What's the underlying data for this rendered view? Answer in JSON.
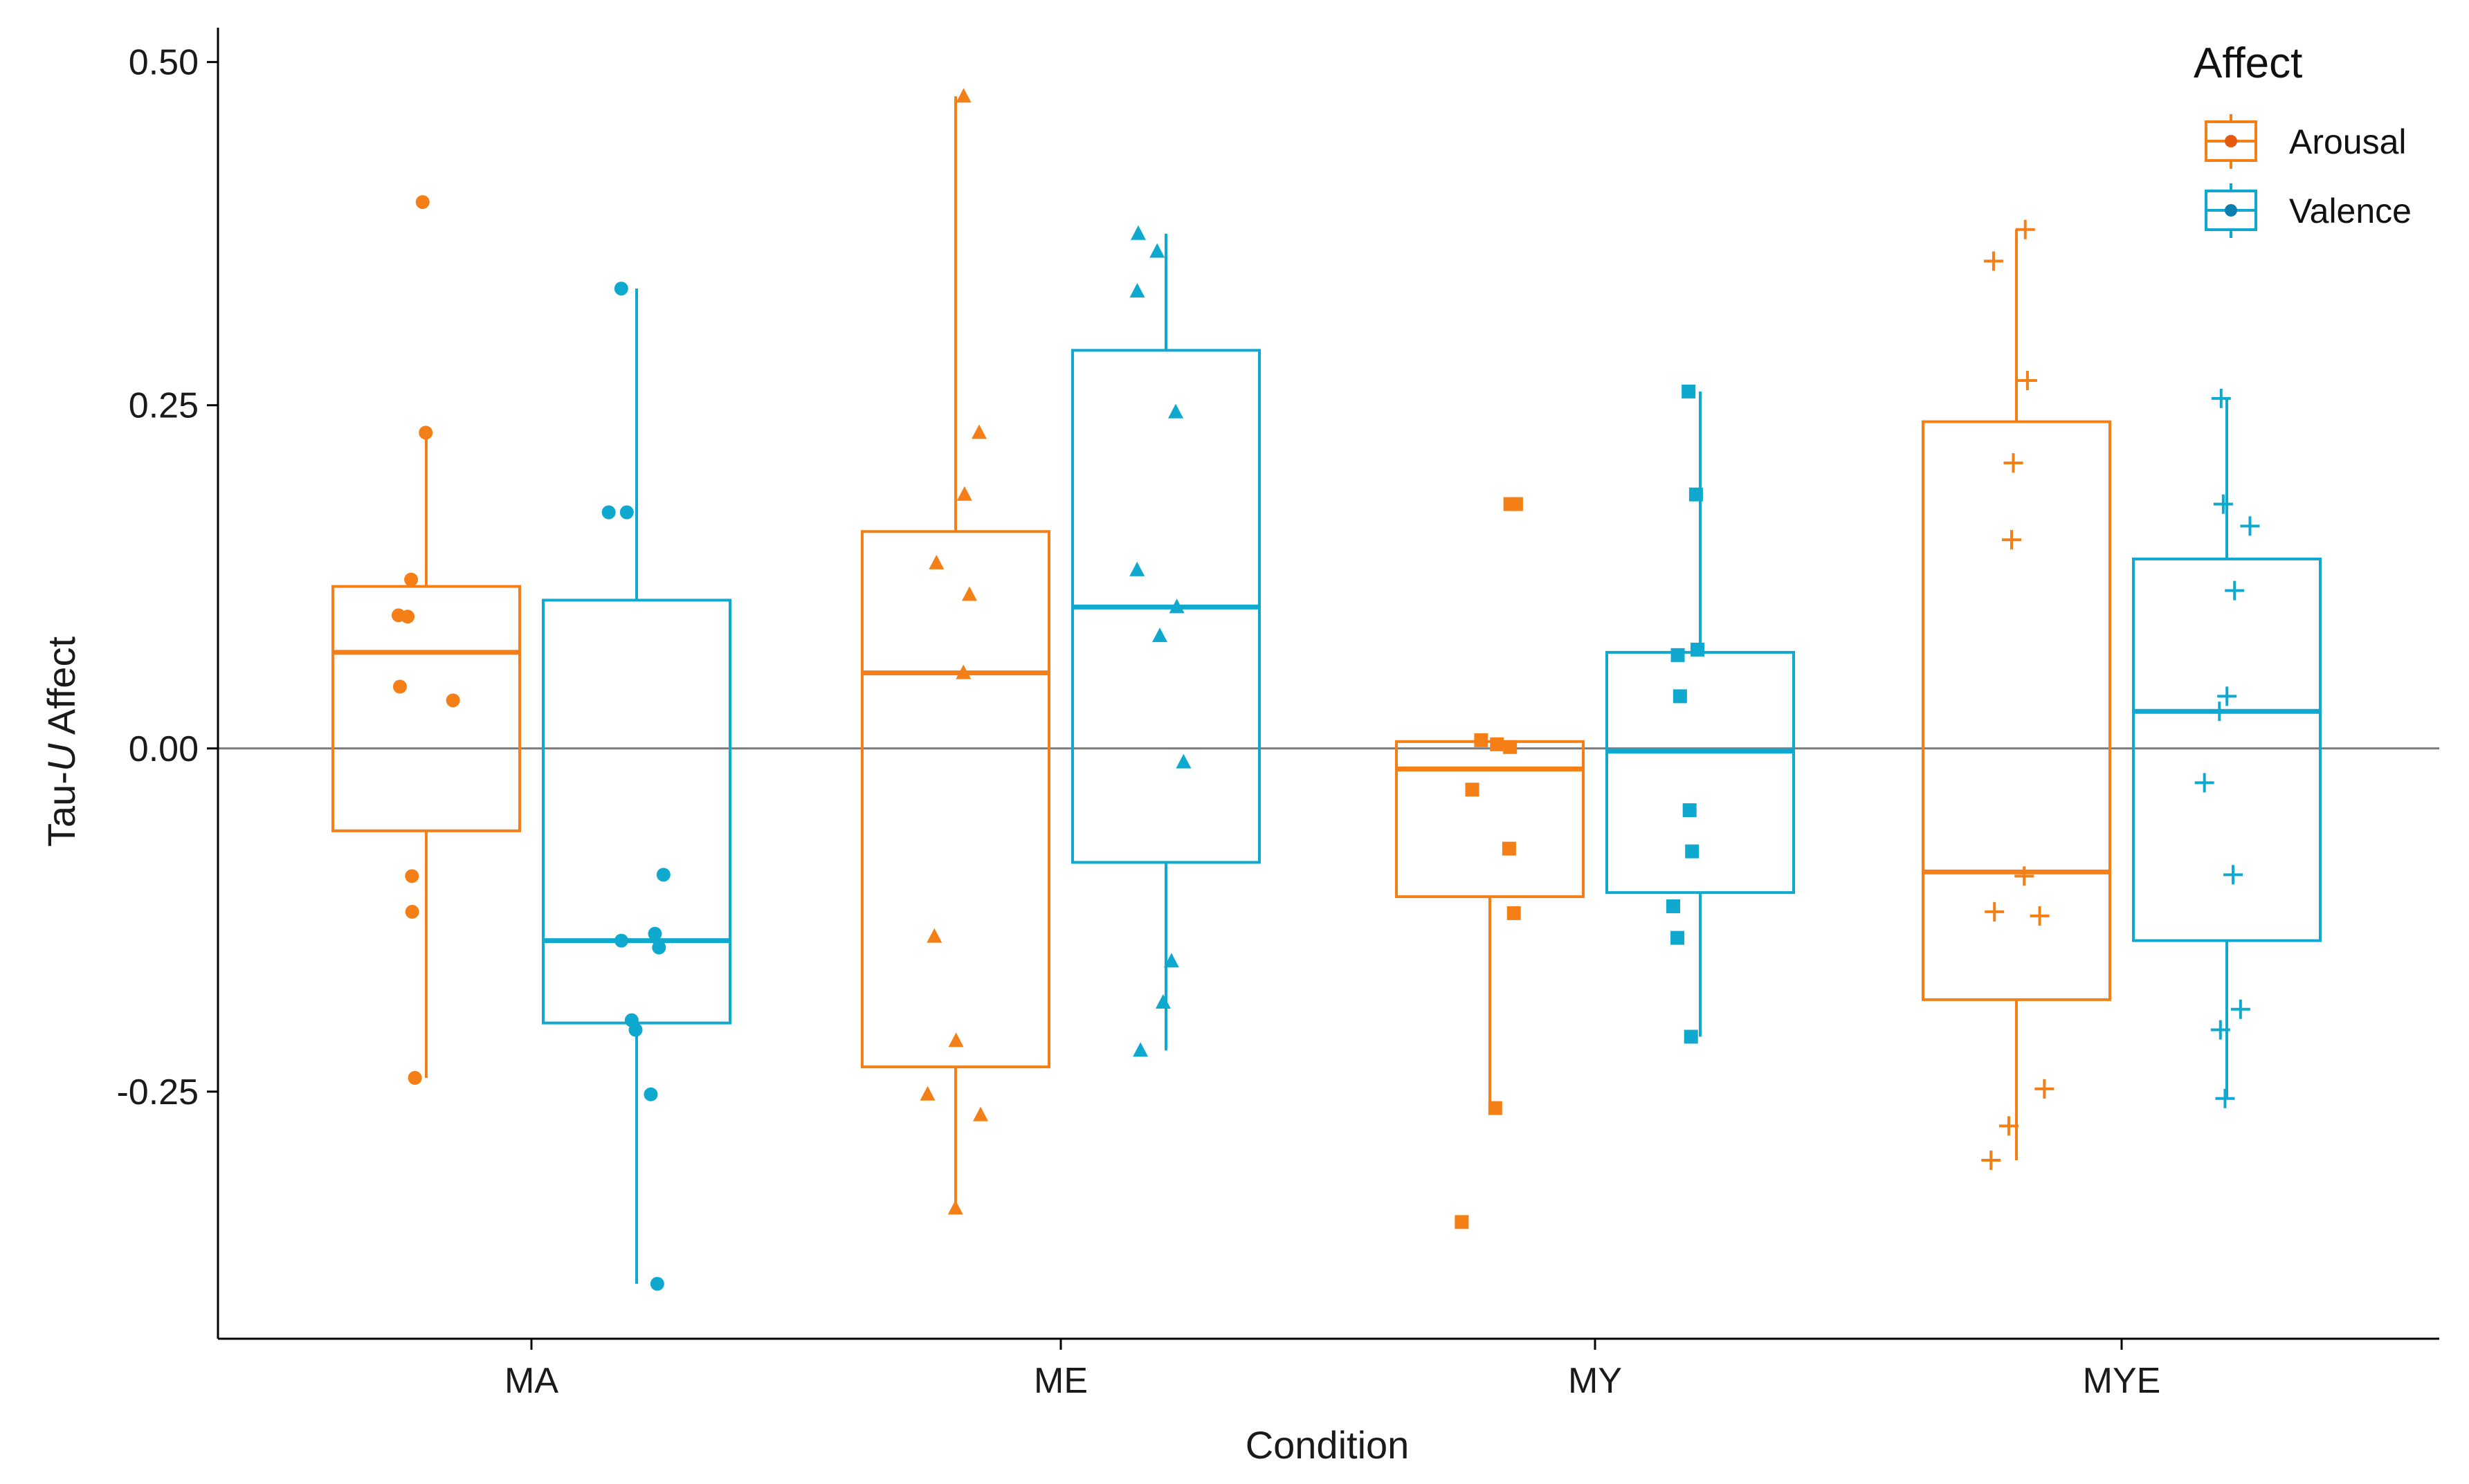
{
  "colors": {
    "arousal": "#F47F17",
    "valence": "#0FA8CF",
    "axis": "#000000",
    "refline": "#7A7A7A"
  },
  "chart_data": {
    "type": "boxplot",
    "xlabel": "Condition",
    "ylabel_prefix": "Tau-",
    "ylabel_italic": "U",
    "ylabel_suffix": " Affect",
    "ylim": [
      -0.43,
      0.52
    ],
    "yticks": [
      0.5,
      0.25,
      0.0,
      -0.25
    ],
    "ytick_labels": [
      "0.50",
      "0.25",
      "0.00",
      "-0.25"
    ],
    "hline": 0.0,
    "categories": [
      "MA",
      "ME",
      "MY",
      "MYE"
    ],
    "shapes": [
      "circle",
      "triangle",
      "square",
      "plus"
    ],
    "legend": {
      "title": "Affect",
      "position": "top-right",
      "entries": [
        "Arousal",
        "Valence"
      ]
    },
    "series": [
      {
        "name": "Arousal",
        "boxes": [
          {
            "q1": -0.06,
            "median": 0.07,
            "q3": 0.118,
            "whisker_low": -0.24,
            "whisker_high": 0.23
          },
          {
            "q1": -0.232,
            "median": 0.055,
            "q3": 0.158,
            "whisker_low": -0.335,
            "whisker_high": 0.475
          },
          {
            "q1": -0.108,
            "median": -0.015,
            "q3": 0.005,
            "whisker_low": -0.262,
            "whisker_high": 0.005
          },
          {
            "q1": -0.183,
            "median": -0.09,
            "q3": 0.238,
            "whisker_low": -0.3,
            "whisker_high": 0.378
          }
        ],
        "points": [
          [
            0.398,
            0.23,
            0.123,
            0.097,
            0.096,
            0.045,
            0.035,
            -0.093,
            -0.119,
            -0.24
          ],
          [
            0.475,
            0.23,
            0.185,
            0.135,
            0.112,
            0.055,
            -0.137,
            -0.213,
            -0.252,
            -0.267,
            -0.335
          ],
          [
            0.178,
            0.178,
            0.006,
            0.003,
            0.001,
            -0.03,
            -0.073,
            -0.12,
            -0.262,
            -0.345
          ],
          [
            0.378,
            0.355,
            0.268,
            0.208,
            0.152,
            -0.093,
            -0.119,
            -0.122,
            -0.248,
            -0.275,
            -0.3
          ]
        ]
      },
      {
        "name": "Valence",
        "boxes": [
          {
            "q1": -0.2,
            "median": -0.14,
            "q3": 0.108,
            "whisker_low": -0.39,
            "whisker_high": 0.335
          },
          {
            "q1": -0.083,
            "median": 0.103,
            "q3": 0.29,
            "whisker_low": -0.22,
            "whisker_high": 0.375
          },
          {
            "q1": -0.105,
            "median": -0.002,
            "q3": 0.07,
            "whisker_low": -0.21,
            "whisker_high": 0.26
          },
          {
            "q1": -0.14,
            "median": 0.027,
            "q3": 0.138,
            "whisker_low": -0.255,
            "whisker_high": 0.255
          }
        ],
        "points": [
          [
            0.335,
            0.172,
            0.172,
            -0.092,
            -0.135,
            -0.14,
            -0.145,
            -0.198,
            -0.205,
            -0.252,
            -0.39
          ],
          [
            0.375,
            0.362,
            0.333,
            0.245,
            0.13,
            0.103,
            0.082,
            -0.01,
            -0.155,
            -0.185,
            -0.22
          ],
          [
            0.26,
            0.185,
            0.072,
            0.068,
            0.038,
            -0.045,
            -0.075,
            -0.115,
            -0.138,
            -0.21
          ],
          [
            0.255,
            0.178,
            0.162,
            0.115,
            0.038,
            0.027,
            -0.025,
            -0.092,
            -0.19,
            -0.205,
            -0.255
          ]
        ]
      }
    ]
  }
}
